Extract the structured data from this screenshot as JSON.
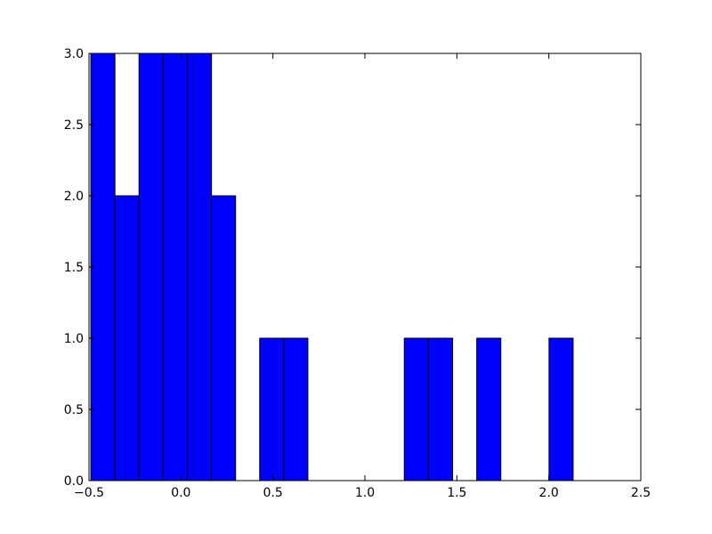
{
  "chart_data": {
    "type": "histogram",
    "bins": [
      -0.49,
      -0.359,
      -0.228,
      -0.097,
      0.034,
      0.166,
      0.297,
      0.428,
      0.559,
      0.69,
      0.821,
      0.952,
      1.083,
      1.214,
      1.345,
      1.477,
      1.608,
      1.739,
      1.87,
      2.001,
      2.132
    ],
    "values": [
      3,
      2,
      3,
      3,
      3,
      2,
      0,
      1,
      1,
      0,
      0,
      0,
      0,
      1,
      1,
      0,
      1,
      0,
      0,
      1
    ],
    "color": "#0000ff",
    "xlim": [
      -0.5,
      2.5
    ],
    "xticks": [
      {
        "value": -0.5,
        "label": "−0.5"
      },
      {
        "value": 0,
        "label": "0.0"
      },
      0.5,
      {
        "value": 1,
        "label": "1.0"
      },
      1.5,
      {
        "value": 2,
        "label": "2.0"
      },
      2.5
    ],
    "ylim": [
      0,
      3
    ],
    "yticks": [
      {
        "value": 0,
        "label": "0.0"
      },
      0.5,
      {
        "value": 1,
        "label": "1.0"
      },
      1.5,
      {
        "value": 2,
        "label": "2.0"
      },
      2.5,
      {
        "value": 3,
        "label": "3.0"
      }
    ],
    "grid": false
  }
}
